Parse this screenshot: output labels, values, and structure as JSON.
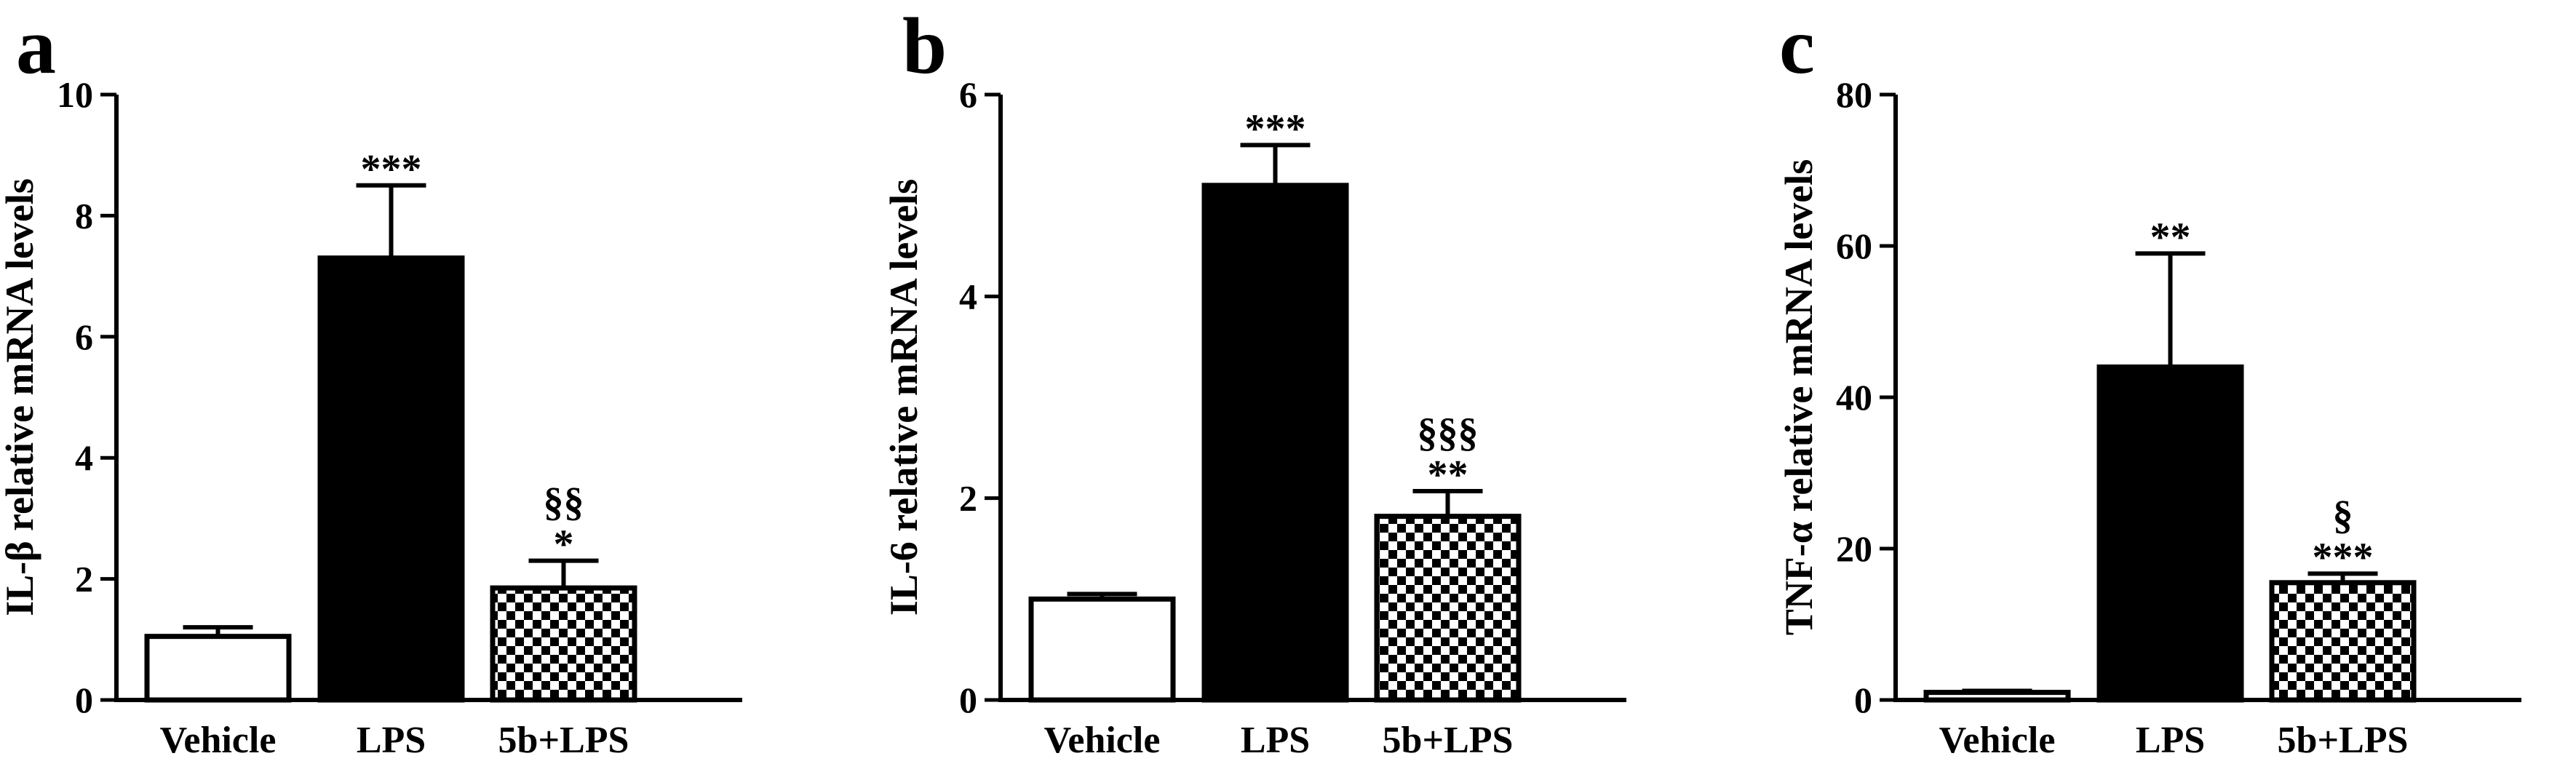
{
  "colors": {
    "axis": "#000000",
    "lps_fill": "#000000",
    "vehicle_fill": "#ffffff",
    "pattern": "checkerboard"
  },
  "chart_data": [
    {
      "type": "bar",
      "panel": "a",
      "ylabel": "IL-β  relative mRNA levels",
      "categories": [
        "Vehicle",
        "LPS",
        "5b+LPS"
      ],
      "values": [
        1.05,
        7.3,
        1.85
      ],
      "errors": [
        0.15,
        1.2,
        0.45
      ],
      "annotations": [
        "",
        "***",
        "*"
      ],
      "annotations2": [
        "",
        "",
        "§§"
      ],
      "ylim": [
        0,
        10
      ],
      "yticks": [
        0,
        2,
        4,
        6,
        8,
        10
      ],
      "fills": [
        "white",
        "black",
        "checker"
      ]
    },
    {
      "type": "bar",
      "panel": "b",
      "ylabel": "IL-6 relative mRNA levels",
      "categories": [
        "Vehicle",
        "LPS",
        "5b+LPS"
      ],
      "values": [
        1.0,
        5.1,
        1.82
      ],
      "errors": [
        0.05,
        0.4,
        0.25
      ],
      "annotations": [
        "",
        "***",
        "**"
      ],
      "annotations2": [
        "",
        "",
        "§§§"
      ],
      "ylim": [
        0,
        6
      ],
      "yticks": [
        0,
        2,
        4,
        6
      ],
      "fills": [
        "white",
        "black",
        "checker"
      ]
    },
    {
      "type": "bar",
      "panel": "c",
      "ylabel": "TNF-α  relative mRNA levels",
      "categories": [
        "Vehicle",
        "LPS",
        "5b+LPS"
      ],
      "values": [
        1.0,
        44,
        15.5
      ],
      "errors": [
        0.2,
        15,
        1.2
      ],
      "annotations": [
        "",
        "**",
        "***"
      ],
      "annotations2": [
        "",
        "",
        "§"
      ],
      "ylim": [
        0,
        80
      ],
      "yticks": [
        0,
        20,
        40,
        60,
        80
      ],
      "fills": [
        "white",
        "black",
        "checker"
      ]
    }
  ]
}
